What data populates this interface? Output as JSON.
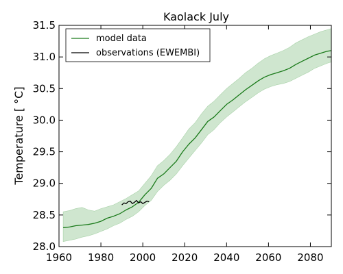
{
  "chart_data": {
    "type": "line",
    "title": "Kaolack July",
    "xlabel": "",
    "ylabel": "Temperature [ °C]",
    "xlim": [
      1960,
      2090
    ],
    "ylim": [
      28.0,
      31.5
    ],
    "xticks": [
      1960,
      1980,
      2000,
      2020,
      2040,
      2060,
      2080
    ],
    "yticks": [
      28.0,
      28.5,
      29.0,
      29.5,
      30.0,
      30.5,
      31.0,
      31.5
    ],
    "xtick_labels": [
      "1960",
      "1980",
      "2000",
      "2020",
      "2040",
      "2060",
      "2080"
    ],
    "ytick_labels": [
      "28.0",
      "28.5",
      "29.0",
      "29.5",
      "30.0",
      "30.5",
      "31.0",
      "31.5"
    ],
    "grid": false,
    "legend": {
      "placement": "top-left",
      "entries": [
        "model data",
        "observations (EWEMBI)"
      ]
    },
    "colors": {
      "model": "#1a7a1a",
      "band": "#cfe6cf",
      "observations": "#000000"
    },
    "series": [
      {
        "name": "model data",
        "x": [
          1962,
          1965,
          1968,
          1971,
          1974,
          1977,
          1980,
          1983,
          1986,
          1989,
          1992,
          1995,
          1998,
          2001,
          2004,
          2007,
          2010,
          2013,
          2016,
          2019,
          2022,
          2025,
          2028,
          2031,
          2034,
          2037,
          2040,
          2043,
          2046,
          2049,
          2052,
          2055,
          2058,
          2061,
          2064,
          2067,
          2070,
          2073,
          2076,
          2079,
          2082,
          2085,
          2088,
          2090
        ],
        "values": [
          28.3,
          28.31,
          28.33,
          28.34,
          28.35,
          28.37,
          28.4,
          28.45,
          28.48,
          28.52,
          28.58,
          28.63,
          28.7,
          28.82,
          28.92,
          29.08,
          29.15,
          29.25,
          29.35,
          29.5,
          29.62,
          29.72,
          29.85,
          29.98,
          30.05,
          30.15,
          30.25,
          30.32,
          30.4,
          30.48,
          30.55,
          30.62,
          30.68,
          30.72,
          30.75,
          30.78,
          30.82,
          30.88,
          30.93,
          30.98,
          31.03,
          31.06,
          31.09,
          31.1
        ]
      },
      {
        "name": "model range lower",
        "x": [
          1962,
          1965,
          1968,
          1971,
          1974,
          1977,
          1980,
          1983,
          1986,
          1989,
          1992,
          1995,
          1998,
          2001,
          2004,
          2007,
          2010,
          2013,
          2016,
          2019,
          2022,
          2025,
          2028,
          2031,
          2034,
          2037,
          2040,
          2043,
          2046,
          2049,
          2052,
          2055,
          2058,
          2061,
          2064,
          2067,
          2070,
          2073,
          2076,
          2079,
          2082,
          2085,
          2088,
          2090
        ],
        "values": [
          28.08,
          28.1,
          28.12,
          28.15,
          28.17,
          28.2,
          28.24,
          28.28,
          28.33,
          28.37,
          28.43,
          28.48,
          28.55,
          28.65,
          28.73,
          28.87,
          28.97,
          29.05,
          29.15,
          29.28,
          29.4,
          29.52,
          29.64,
          29.77,
          29.85,
          29.96,
          30.05,
          30.13,
          30.21,
          30.29,
          30.36,
          30.43,
          30.49,
          30.53,
          30.56,
          30.58,
          30.61,
          30.66,
          30.71,
          30.76,
          30.82,
          30.86,
          30.9,
          30.92
        ]
      },
      {
        "name": "model range upper",
        "x": [
          1962,
          1965,
          1968,
          1971,
          1974,
          1977,
          1980,
          1983,
          1986,
          1989,
          1992,
          1995,
          1998,
          2001,
          2004,
          2007,
          2010,
          2013,
          2016,
          2019,
          2022,
          2025,
          2028,
          2031,
          2034,
          2037,
          2040,
          2043,
          2046,
          2049,
          2052,
          2055,
          2058,
          2061,
          2064,
          2067,
          2070,
          2073,
          2076,
          2079,
          2082,
          2085,
          2088,
          2090
        ],
        "values": [
          28.55,
          28.57,
          28.6,
          28.62,
          28.58,
          28.56,
          28.6,
          28.63,
          28.66,
          28.71,
          28.76,
          28.82,
          28.88,
          29.0,
          29.12,
          29.28,
          29.36,
          29.46,
          29.58,
          29.72,
          29.86,
          29.96,
          30.1,
          30.22,
          30.3,
          30.4,
          30.5,
          30.58,
          30.66,
          30.75,
          30.82,
          30.9,
          30.97,
          31.02,
          31.06,
          31.1,
          31.15,
          31.22,
          31.27,
          31.32,
          31.36,
          31.4,
          31.43,
          31.45
        ]
      },
      {
        "name": "observations (EWEMBI)",
        "x": [
          1990,
          1991,
          1992,
          1993,
          1994,
          1995,
          1996,
          1997,
          1998,
          1999,
          2000,
          2001,
          2002,
          2003
        ],
        "values": [
          28.66,
          28.69,
          28.68,
          28.71,
          28.72,
          28.68,
          28.7,
          28.73,
          28.69,
          28.71,
          28.68,
          28.7,
          28.72,
          28.71
        ]
      }
    ]
  }
}
